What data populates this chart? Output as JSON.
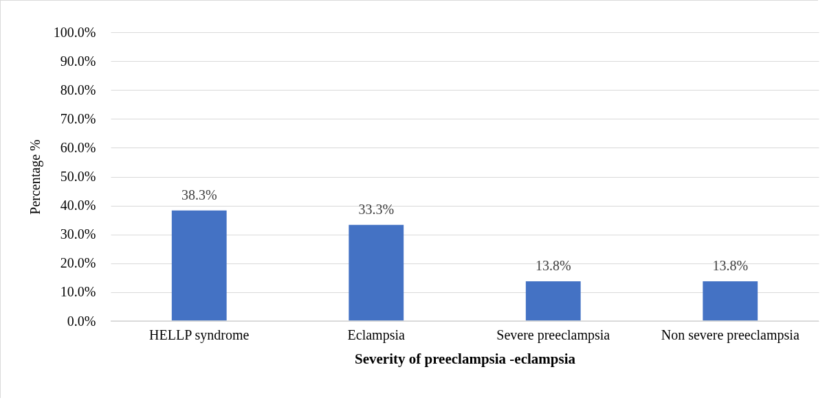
{
  "chart_data": {
    "type": "bar",
    "xlabel": "Severity of preeclampsia -eclampsia",
    "ylabel": "Percentage %",
    "categories": [
      "HELLP syndrome",
      "Eclampsia",
      "Severe preeclampsia",
      "Non severe preeclampsia"
    ],
    "values": [
      38.3,
      33.3,
      13.8,
      13.8
    ],
    "value_labels": [
      "38.3%",
      "33.3%",
      "13.8%",
      "13.8%"
    ],
    "color": "#4472c4",
    "ylim": [
      0,
      100
    ],
    "yticks": [
      {
        "value": 0,
        "label": "0.0%"
      },
      {
        "value": 10,
        "label": "10.0%"
      },
      {
        "value": 20,
        "label": "20.0%"
      },
      {
        "value": 30,
        "label": "30.0%"
      },
      {
        "value": 40,
        "label": "40.0%"
      },
      {
        "value": 50,
        "label": "50.0%"
      },
      {
        "value": 60,
        "label": "60.0%"
      },
      {
        "value": 70,
        "label": "70.0%"
      },
      {
        "value": 80,
        "label": "80.0%"
      },
      {
        "value": 90,
        "label": "90.0%"
      },
      {
        "value": 100,
        "label": "100.0%"
      }
    ],
    "grid": "y"
  }
}
